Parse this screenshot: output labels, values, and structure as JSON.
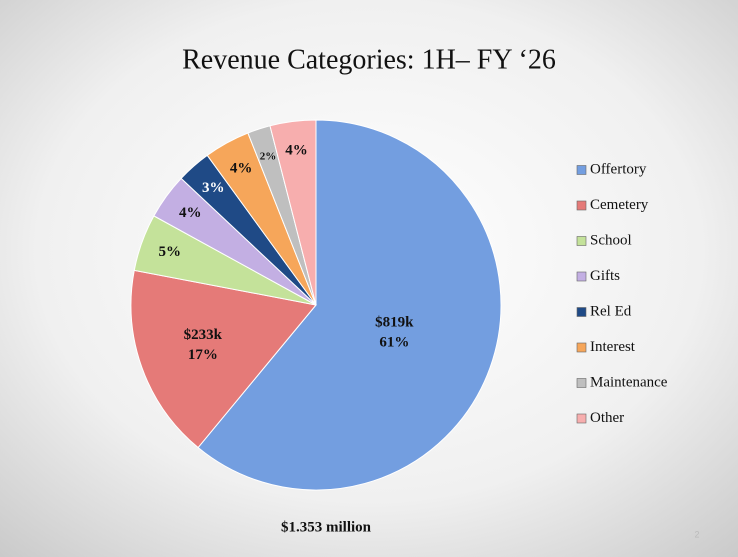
{
  "chart_data": {
    "type": "pie",
    "title": "Revenue Categories: 1H– FY ‘26",
    "categories": [
      "Offertory",
      "Cemetery",
      "School",
      "Gifts",
      "Rel Ed",
      "Interest",
      "Maintenance",
      "Other"
    ],
    "values": [
      61,
      17,
      5,
      4,
      3,
      4,
      2,
      4
    ],
    "value_labels": [
      "61%",
      "17%",
      "5%",
      "4%",
      "3%",
      "4%",
      "2%",
      "4%"
    ],
    "amount_labels": [
      "$819k",
      "$233k",
      null,
      null,
      null,
      null,
      null,
      null
    ],
    "colors": [
      "#739ee0",
      "#e57a78",
      "#c4e29a",
      "#c3afe3",
      "#1f4a86",
      "#f6a65a",
      "#bfbfbf",
      "#f7aeae"
    ],
    "legend": "right",
    "footer": "$1.353 million",
    "page_number": "2"
  }
}
